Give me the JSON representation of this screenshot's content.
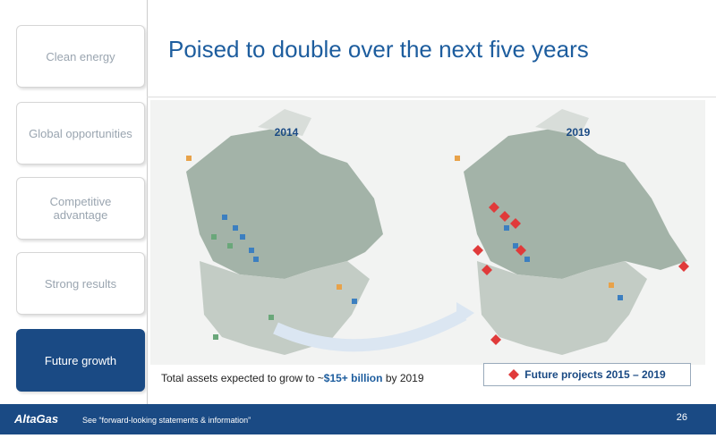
{
  "sidebar": {
    "items": [
      "Clean energy",
      "Global opportunities",
      "Competitive advantage",
      "Strong results",
      "Future growth"
    ],
    "active": 4
  },
  "header": {
    "title": "Poised to double over the next five years"
  },
  "maps": [
    {
      "label": "2014"
    },
    {
      "label": "2019"
    }
  ],
  "caption": {
    "before": "Total assets expected to grow to ~",
    "highlight": "$15+ billion",
    "after": " by 2019"
  },
  "legend": {
    "label": "Future projects 2015 – 2019"
  },
  "footer": {
    "logo": "AltaGas",
    "note": "See “forward-looking statements & information”",
    "page": "26"
  }
}
